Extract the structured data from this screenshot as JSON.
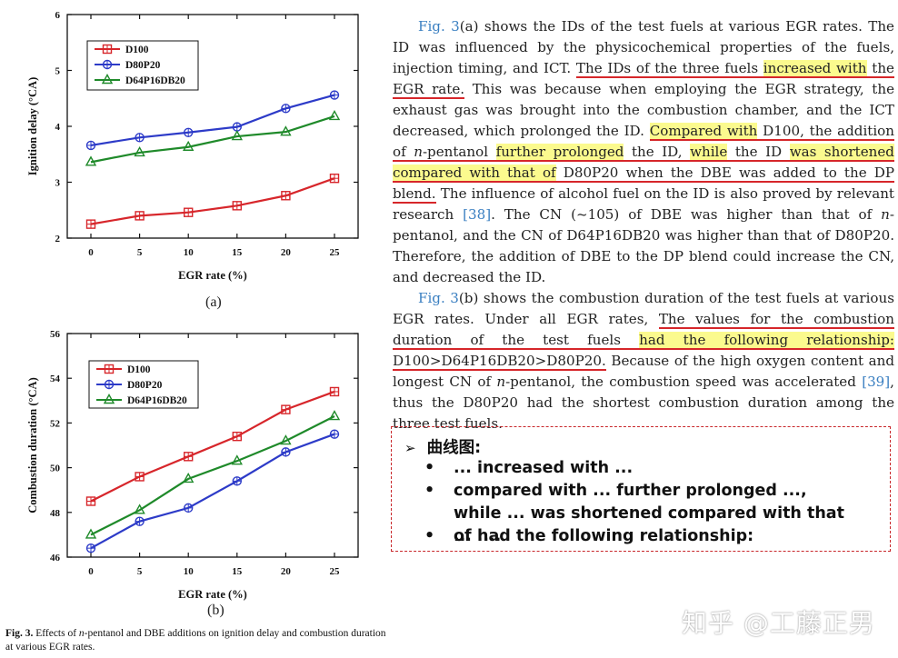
{
  "paper": {
    "p1": {
      "ref1": "Fig. 3",
      "s1": "(a) shows the IDs of the test fuels at various EGR rates. The ID was influenced by the physicochemical properties of the fuels, injection timing, and ICT.",
      "u1a": "The IDs of the three fuels",
      "h1": "increased with",
      "u1b": "the EGR rate.",
      "s2": "This was because when employing the EGR strategy, the exhaust gas was brought into the combustion chamber, and the ICT decreased, which prolonged the ID.",
      "h2": "Compared with",
      "u2a": "D100, the addition of",
      "u2b": "n",
      "u2c": "-pentanol",
      "h3": "further prolonged",
      "u2d": "the ID,",
      "h4": "while",
      "u2e": "the ID",
      "h5": "was shortened compared with that of",
      "u2f": "D80P20 when the DBE was added to the DP blend.",
      "s3": "The influence of alcohol fuel on the ID is also proved by relevant research",
      "ref2": "[38]",
      "s4": ". The CN (~105) of DBE was higher than that of",
      "s4i": "n",
      "s5": "-pentanol, and the CN of D64P16DB20 was higher than that of D80P20. Therefore, the addition of DBE to the DP blend could increase the CN, and decreased the ID."
    },
    "p2": {
      "ref1": "Fig. 3",
      "s1": "(b) shows the combustion duration of the test fuels at various EGR rates. Under all EGR rates,",
      "u1": "The values for the combustion duration of the test fuels",
      "h1": "had the following relationship:",
      "u2": "D100>D64P16DB20>D80P20.",
      "s2": "Because of the high oxygen content and longest CN of",
      "s2i": "n",
      "s3": "-pentanol, the combustion speed was accelerated",
      "ref2": "[39]",
      "s4": ", thus the D80P20 had the shortest combustion duration among the three test fuels."
    }
  },
  "note": {
    "title": "曲线图:",
    "items": [
      "... increased with ...",
      "compared with ... further prolonged ..., while ... was shortened compared with that of ....",
      "... had the following relationship:"
    ]
  },
  "caption": {
    "label": "Fig. 3.",
    "text1": "Effects of",
    "italic": "n",
    "text2": "-pentanol and DBE additions on ignition delay and combustion duration at various EGR rates."
  },
  "sublabels": {
    "a": "(a)",
    "b": "(b)"
  },
  "watermark": "知乎 @工藤正男",
  "colors": {
    "d100": "#d7262b",
    "d80p20": "#2d3bc8",
    "d64": "#1f8a2a",
    "highlight": "#fbfa8e",
    "underline": "#d6262a",
    "ref": "#3a7fc1"
  },
  "chart_data": [
    {
      "type": "line",
      "xlabel": "EGR rate (%)",
      "ylabel": "Ignition delay (°CA)",
      "x": [
        0,
        5,
        10,
        15,
        20,
        25
      ],
      "ylim": [
        2,
        6
      ],
      "yticks": [
        2,
        3,
        4,
        5,
        6
      ],
      "legend_position": "top-left",
      "series": [
        {
          "name": "D100",
          "marker": "square",
          "color": "#d7262b",
          "values": [
            2.25,
            2.4,
            2.46,
            2.58,
            2.76,
            3.07
          ]
        },
        {
          "name": "D80P20",
          "marker": "circle",
          "color": "#2d3bc8",
          "values": [
            3.66,
            3.8,
            3.89,
            3.99,
            4.32,
            4.56
          ]
        },
        {
          "name": "D64P16DB20",
          "marker": "triangle",
          "color": "#1f8a2a",
          "values": [
            3.36,
            3.53,
            3.63,
            3.82,
            3.9,
            4.18
          ]
        }
      ]
    },
    {
      "type": "line",
      "xlabel": "EGR rate (%)",
      "ylabel": "Combustion duration (°CA)",
      "x": [
        0,
        5,
        10,
        15,
        20,
        25
      ],
      "ylim": [
        46,
        56
      ],
      "yticks": [
        46,
        48,
        50,
        52,
        54,
        56
      ],
      "legend_position": "top-left",
      "series": [
        {
          "name": "D100",
          "marker": "square",
          "color": "#d7262b",
          "values": [
            48.5,
            49.6,
            50.5,
            51.4,
            52.6,
            53.4
          ]
        },
        {
          "name": "D80P20",
          "marker": "circle",
          "color": "#2d3bc8",
          "values": [
            46.4,
            47.6,
            48.2,
            49.4,
            50.7,
            51.5
          ]
        },
        {
          "name": "D64P16DB20",
          "marker": "triangle",
          "color": "#1f8a2a",
          "values": [
            47.0,
            48.1,
            49.5,
            50.3,
            51.2,
            52.3
          ]
        }
      ]
    }
  ]
}
